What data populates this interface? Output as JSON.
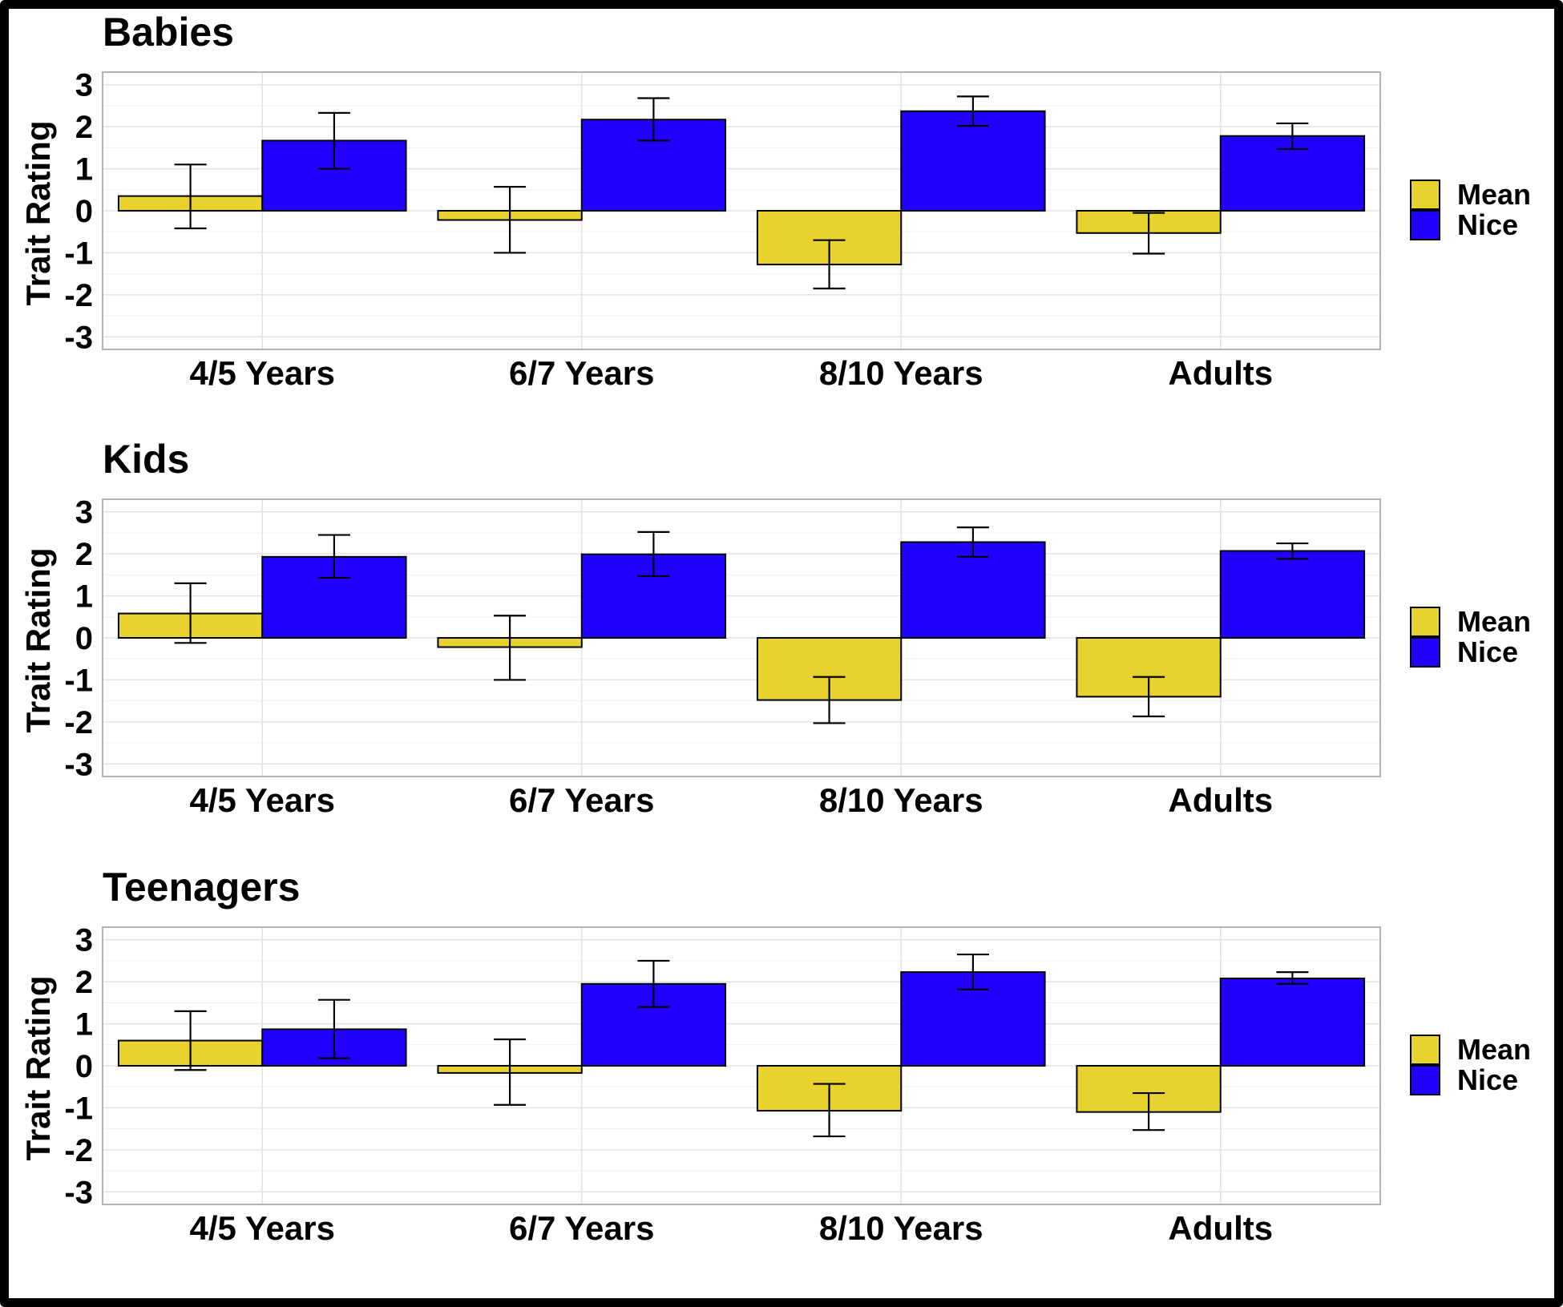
{
  "chart_data": [
    {
      "type": "bar",
      "title": "Babies",
      "ylabel": "Trait Rating",
      "xlabel": "",
      "ylim": [
        -3.3,
        3.3
      ],
      "yticks": [
        3,
        2,
        1,
        0,
        -1,
        -2,
        -3
      ],
      "ytick_labels": [
        "3",
        "2",
        "1",
        "0",
        "-1",
        "-2",
        "-3"
      ],
      "grid": true,
      "legend_position": "right",
      "categories": [
        "4/5 Years",
        "6/7 Years",
        "8/10 Years",
        "Adults"
      ],
      "series": [
        {
          "name": "Mean",
          "color": "#E8D22E",
          "values": [
            0.35,
            -0.22,
            -1.28,
            -0.53
          ],
          "err_low": [
            -0.42,
            -1.0,
            -1.85,
            -1.02
          ],
          "err_high": [
            1.1,
            0.57,
            -0.7,
            -0.05
          ]
        },
        {
          "name": "Nice",
          "color": "#2200FF",
          "values": [
            1.67,
            2.17,
            2.37,
            1.78
          ],
          "err_low": [
            1.0,
            1.67,
            2.02,
            1.47
          ],
          "err_high": [
            2.33,
            2.68,
            2.72,
            2.08
          ]
        }
      ]
    },
    {
      "type": "bar",
      "title": "Kids",
      "ylabel": "Trait Rating",
      "xlabel": "",
      "ylim": [
        -3.3,
        3.3
      ],
      "yticks": [
        3,
        2,
        1,
        0,
        -1,
        -2,
        -3
      ],
      "ytick_labels": [
        "3",
        "2",
        "1",
        "0",
        "-1",
        "-2",
        "-3"
      ],
      "grid": true,
      "legend_position": "right",
      "categories": [
        "4/5 Years",
        "6/7 Years",
        "8/10 Years",
        "Adults"
      ],
      "series": [
        {
          "name": "Mean",
          "color": "#E8D22E",
          "values": [
            0.58,
            -0.22,
            -1.48,
            -1.4
          ],
          "err_low": [
            -0.12,
            -1.0,
            -2.03,
            -1.87
          ],
          "err_high": [
            1.3,
            0.53,
            -0.93,
            -0.93
          ]
        },
        {
          "name": "Nice",
          "color": "#2200FF",
          "values": [
            1.93,
            1.99,
            2.28,
            2.07
          ],
          "err_low": [
            1.43,
            1.47,
            1.93,
            1.88
          ],
          "err_high": [
            2.45,
            2.52,
            2.63,
            2.25
          ]
        }
      ]
    },
    {
      "type": "bar",
      "title": "Teenagers",
      "ylabel": "Trait Rating",
      "xlabel": "",
      "ylim": [
        -3.3,
        3.3
      ],
      "yticks": [
        3,
        2,
        1,
        0,
        -1,
        -2,
        -3
      ],
      "ytick_labels": [
        "3",
        "2",
        "1",
        "0",
        "-1",
        "-2",
        "-3"
      ],
      "grid": true,
      "legend_position": "right",
      "categories": [
        "4/5 Years",
        "6/7 Years",
        "8/10 Years",
        "Adults"
      ],
      "series": [
        {
          "name": "Mean",
          "color": "#E8D22E",
          "values": [
            0.6,
            -0.17,
            -1.07,
            -1.1
          ],
          "err_low": [
            -0.1,
            -0.93,
            -1.68,
            -1.53
          ],
          "err_high": [
            1.3,
            0.63,
            -0.43,
            -0.65
          ]
        },
        {
          "name": "Nice",
          "color": "#2200FF",
          "values": [
            0.87,
            1.95,
            2.23,
            2.08
          ],
          "err_low": [
            0.18,
            1.4,
            1.82,
            1.95
          ],
          "err_high": [
            1.57,
            2.5,
            2.65,
            2.23
          ]
        }
      ]
    }
  ]
}
